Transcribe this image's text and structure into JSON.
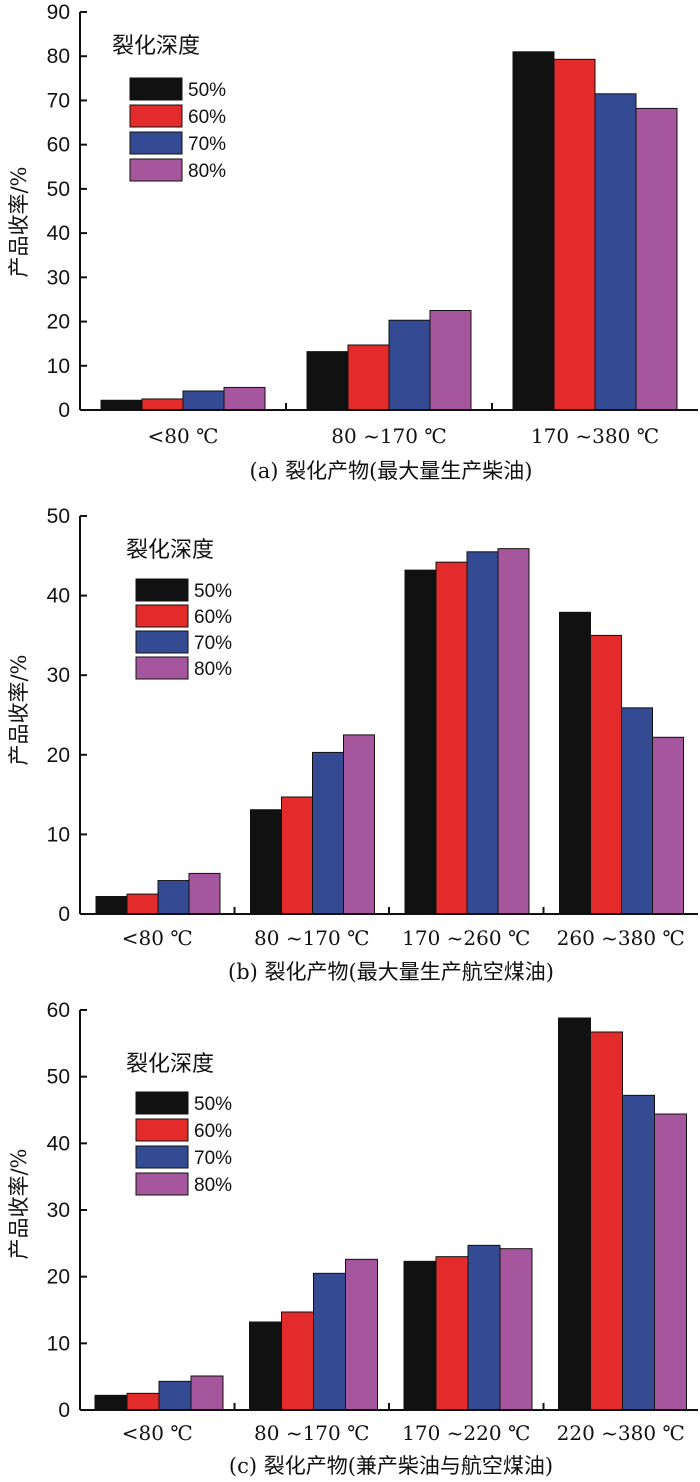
{
  "colors": [
    "#111111",
    "#e32b2b",
    "#344a93",
    "#a6569c"
  ],
  "chart_data": [
    {
      "type": "bar",
      "ylabel": "产品收率/%",
      "ylim": [
        0,
        90
      ],
      "yticks": [
        0,
        10,
        20,
        30,
        40,
        50,
        60,
        70,
        80,
        90
      ],
      "categories": [
        "<80 ℃",
        "80 ~170 ℃",
        "170 ~380 ℃"
      ],
      "caption": "(a) 裂化产物(最大量生产柴油)",
      "legend": {
        "title": "裂化深度",
        "placement": "top-left"
      },
      "series": [
        {
          "name": "50%",
          "values": [
            2.2,
            13.2,
            81.0
          ]
        },
        {
          "name": "60%",
          "values": [
            2.5,
            14.7,
            79.3
          ]
        },
        {
          "name": "70%",
          "values": [
            4.3,
            20.3,
            71.5
          ]
        },
        {
          "name": "80%",
          "values": [
            5.1,
            22.5,
            68.2
          ]
        }
      ]
    },
    {
      "type": "bar",
      "ylabel": "产品收率/%",
      "ylim": [
        0,
        50
      ],
      "yticks": [
        0,
        10,
        20,
        30,
        40,
        50
      ],
      "categories": [
        "<80 ℃",
        "80 ~170 ℃",
        "170 ~260 ℃",
        "260 ~380 ℃"
      ],
      "caption": "(b) 裂化产物(最大量生产航空煤油)",
      "legend": {
        "title": "裂化深度",
        "placement": "top-left"
      },
      "series": [
        {
          "name": "50%",
          "values": [
            2.2,
            13.1,
            43.2,
            37.9
          ]
        },
        {
          "name": "60%",
          "values": [
            2.5,
            14.7,
            44.2,
            35.0
          ]
        },
        {
          "name": "70%",
          "values": [
            4.2,
            20.3,
            45.5,
            25.9
          ]
        },
        {
          "name": "80%",
          "values": [
            5.1,
            22.5,
            45.9,
            22.2
          ]
        }
      ]
    },
    {
      "type": "bar",
      "ylabel": "产品收率/%",
      "ylim": [
        0,
        60
      ],
      "yticks": [
        0,
        10,
        20,
        30,
        40,
        50,
        60
      ],
      "categories": [
        "<80 ℃",
        "80 ~170 ℃",
        "170 ~220 ℃",
        "220 ~380 ℃"
      ],
      "caption": "(c) 裂化产物(兼产柴油与航空煤油)",
      "legend": {
        "title": "裂化深度",
        "placement": "top-left"
      },
      "series": [
        {
          "name": "50%",
          "values": [
            2.2,
            13.2,
            22.3,
            58.8
          ]
        },
        {
          "name": "60%",
          "values": [
            2.5,
            14.7,
            23.0,
            56.7
          ]
        },
        {
          "name": "70%",
          "values": [
            4.3,
            20.5,
            24.7,
            47.2
          ]
        },
        {
          "name": "80%",
          "values": [
            5.1,
            22.6,
            24.2,
            44.4
          ]
        }
      ]
    }
  ]
}
